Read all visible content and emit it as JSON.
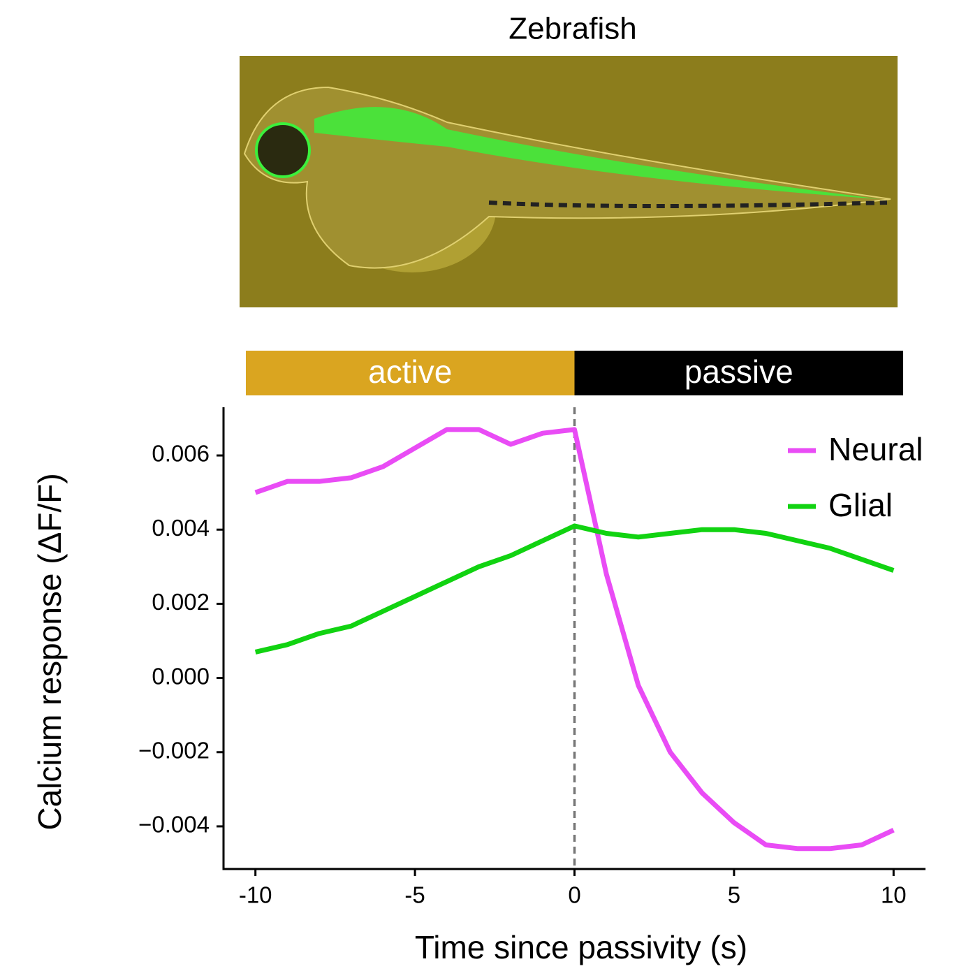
{
  "chart_data": {
    "type": "line",
    "title": "Zebrafish",
    "xlabel": "Time since passivity (s)",
    "ylabel": "Calcium  response (ΔF/F)",
    "x": [
      -10,
      -9,
      -8,
      -7,
      -6,
      -5,
      -4,
      -3,
      -2,
      -1,
      0,
      1,
      2,
      3,
      4,
      5,
      6,
      7,
      8,
      9,
      10
    ],
    "series": [
      {
        "name": "Neural",
        "color": "#e94cf5",
        "values": [
          0.005,
          0.0053,
          0.0053,
          0.0054,
          0.0057,
          0.0062,
          0.0067,
          0.0067,
          0.0063,
          0.0066,
          0.0067,
          0.0028,
          -0.0002,
          -0.002,
          -0.0031,
          -0.0039,
          -0.0045,
          -0.0046,
          -0.0046,
          -0.0045,
          -0.0041
        ]
      },
      {
        "name": "Glial",
        "color": "#11d311",
        "values": [
          0.0007,
          0.0009,
          0.0012,
          0.0014,
          0.0018,
          0.0022,
          0.0026,
          0.003,
          0.0033,
          0.0037,
          0.0041,
          0.0039,
          0.0038,
          0.0039,
          0.004,
          0.004,
          0.0039,
          0.0037,
          0.0035,
          0.0032,
          0.0029
        ]
      }
    ],
    "xlim": [
      -11,
      11
    ],
    "ylim": [
      -0.00515,
      0.0073
    ],
    "xticks": [
      -10,
      -5,
      0,
      5,
      10
    ],
    "yticks": [
      {
        "value": -0.004,
        "label": "−0.004"
      },
      {
        "value": -0.002,
        "label": "−0.002"
      },
      {
        "value": 0,
        "label": "0.000"
      },
      0.002,
      0.004,
      0.006
    ],
    "vline": 0,
    "phases": [
      {
        "label": "active",
        "start": -10.3,
        "end": 0,
        "color": "#daa520"
      },
      {
        "label": "passive",
        "start": 0,
        "end": 10.3,
        "color": "#000000"
      }
    ],
    "legend": "upper right"
  }
}
